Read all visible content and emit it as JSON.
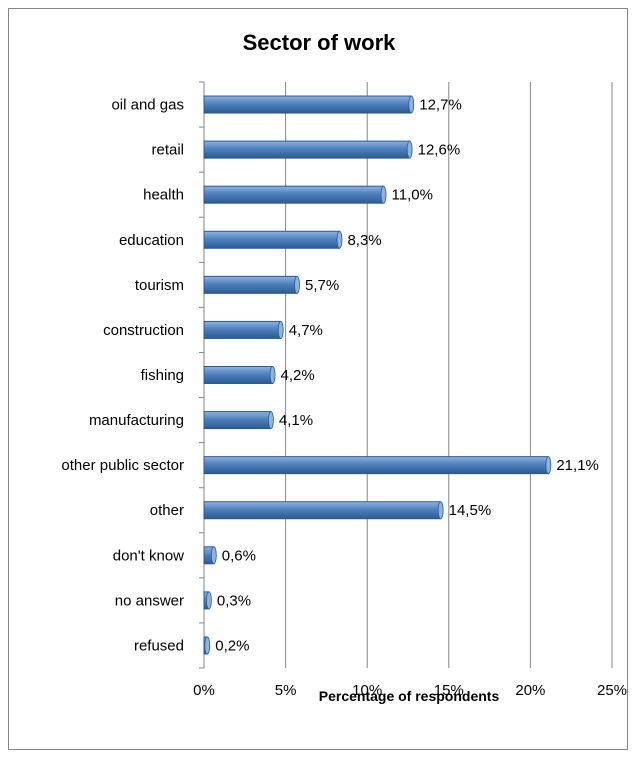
{
  "chart_data": {
    "type": "bar",
    "orientation": "horizontal",
    "title": "Sector of work",
    "xlabel": "Percentage of respondents",
    "ylabel": "",
    "xlim": [
      0,
      25
    ],
    "x_ticks": [
      "0%",
      "5%",
      "10%",
      "15%",
      "20%",
      "25%"
    ],
    "grid": true,
    "categories": [
      "oil and gas",
      "retail",
      "health",
      "education",
      "tourism",
      "construction",
      "fishing",
      "manufacturing",
      "other public sector",
      "other",
      "don't know",
      "no answer",
      "refused"
    ],
    "values": [
      12.7,
      12.6,
      11.0,
      8.3,
      5.7,
      4.7,
      4.2,
      4.1,
      21.1,
      14.5,
      0.6,
      0.3,
      0.2
    ],
    "value_labels": [
      "12,7%",
      "12,6%",
      "11,0%",
      "8,3%",
      "5,7%",
      "4,7%",
      "4,2%",
      "4,1%",
      "21,1%",
      "14,5%",
      "0,6%",
      "0,3%",
      "0,2%"
    ],
    "colors": {
      "bar": "#4f81bd",
      "bar_dark": "#2c5a93",
      "bar_light": "#8fb3e0",
      "grid": "#868686"
    }
  }
}
